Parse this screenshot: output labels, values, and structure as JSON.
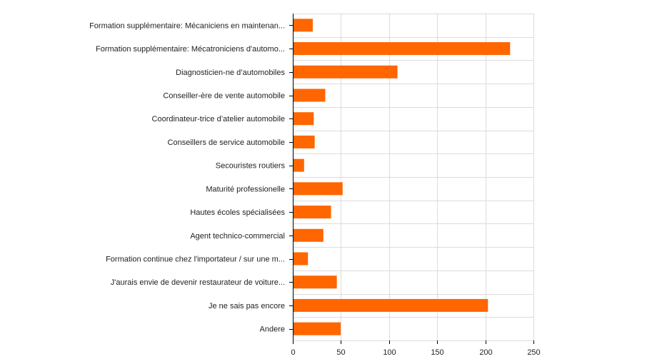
{
  "chart_data": {
    "type": "bar",
    "orientation": "horizontal",
    "title": "",
    "xlabel": "",
    "ylabel": "",
    "categories": [
      "Formation supplémentaire: Mécaniciens en maintenan...",
      "Formation supplémentaire: Mécatroniciens d'automo...",
      "Diagnosticien-ne d’automobiles",
      "Conseiller-ère de vente automobile",
      "Coordinateur-trice d’atelier automobile",
      "Conseillers de service automobile",
      "Secouristes routiers",
      "Maturité professionelle",
      "Hautes écoles spécialisées",
      "Agent technico-commercial",
      "Formation continue chez l'importateur / sur une m...",
      "J'aurais envie de devenir restaurateur de voiture...",
      "Je ne sais pas encore",
      "Andere"
    ],
    "values": [
      20,
      225,
      108,
      33,
      21,
      22,
      11,
      51,
      39,
      31,
      15,
      45,
      202,
      49
    ],
    "xlim": [
      0,
      250
    ],
    "xticks": [
      0,
      50,
      100,
      150,
      200,
      250
    ],
    "grid": true,
    "legend": "none",
    "bar_color": "#ff6600"
  }
}
